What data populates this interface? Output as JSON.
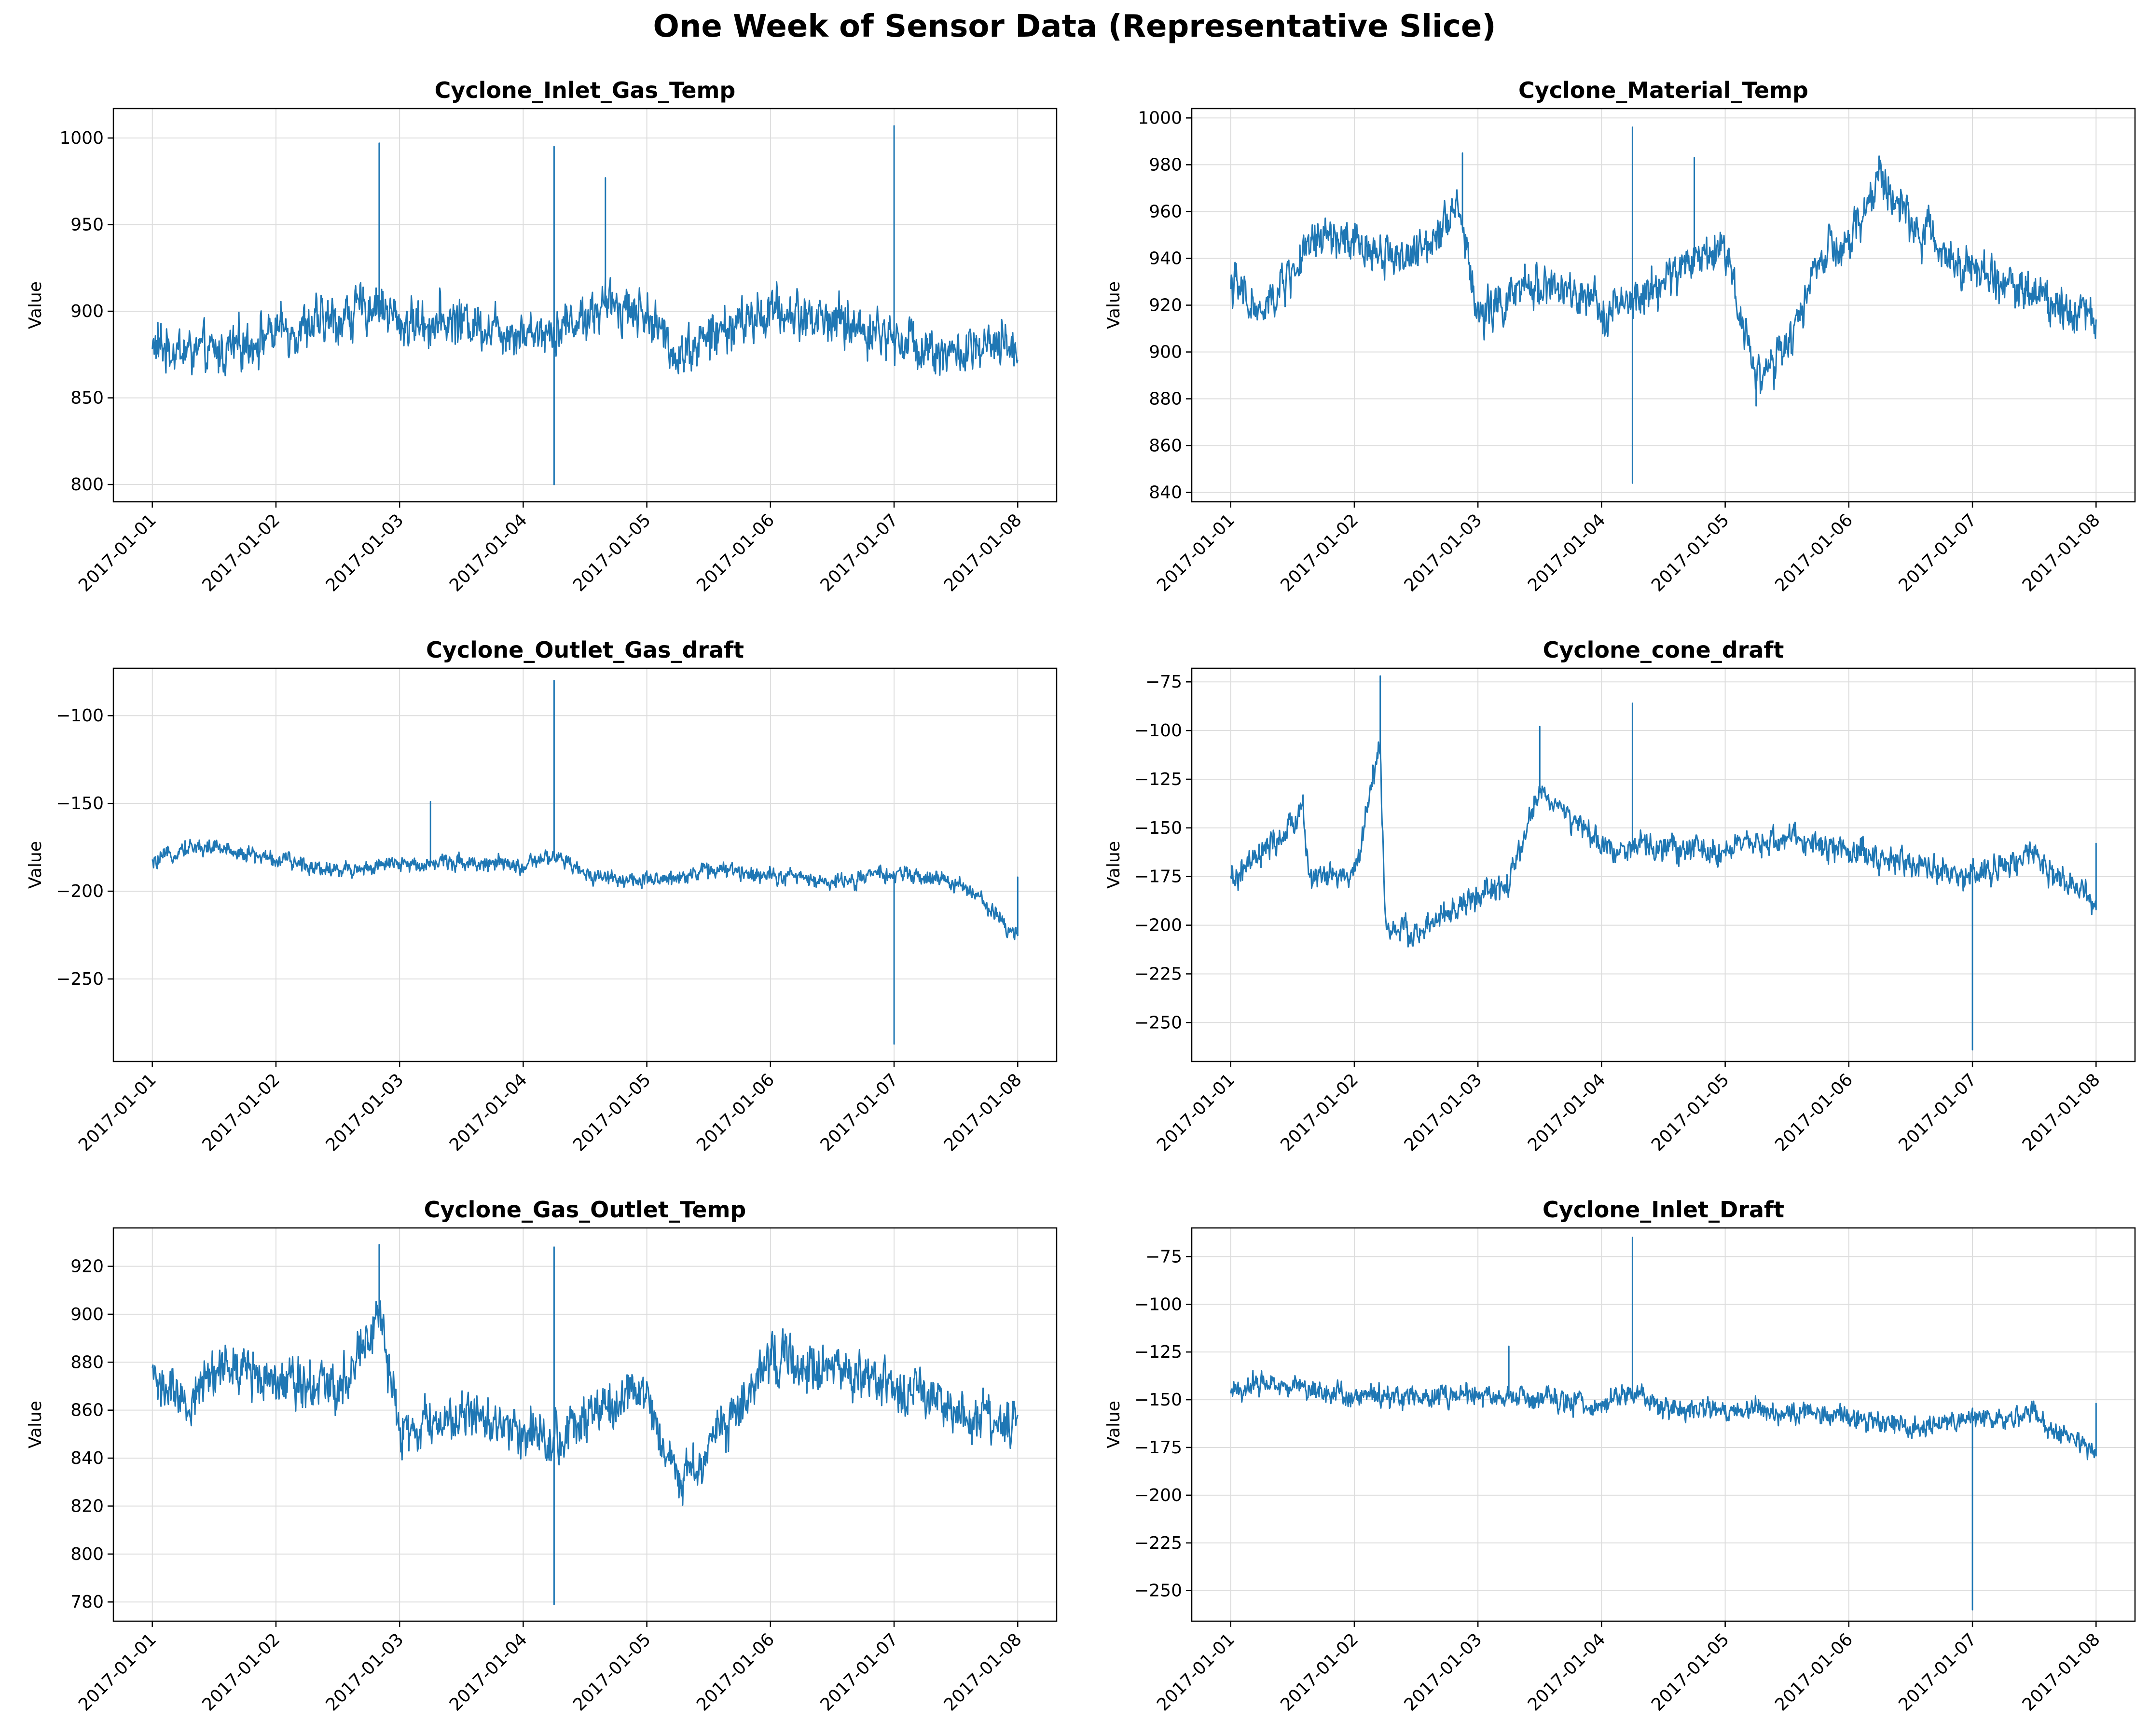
{
  "figure": {
    "title": "One Week of Sensor Data (Representative Slice)"
  },
  "colors": {
    "series": "#1f77b4",
    "grid": "#dddddd",
    "axis": "#000000"
  },
  "chart_data": [
    {
      "type": "line",
      "title": "Cyclone_Inlet_Gas_Temp",
      "xlabel": "",
      "ylabel": "Value",
      "xticks": [
        "2017-01-01",
        "2017-01-02",
        "2017-01-03",
        "2017-01-04",
        "2017-01-05",
        "2017-01-06",
        "2017-01-07",
        "2017-01-08"
      ],
      "yticks": [
        800,
        850,
        900,
        950,
        1000
      ],
      "ylim": [
        790,
        1017
      ],
      "grid": true,
      "x": [
        "2017-01-01",
        "2017-01-01 12:00",
        "2017-01-02",
        "2017-01-02 12:00",
        "2017-01-02 20:00",
        "2017-01-03",
        "2017-01-03 12:00",
        "2017-01-04",
        "2017-01-04 06:00",
        "2017-01-04 18:00",
        "2017-01-05",
        "2017-01-05 06:00",
        "2017-01-05 12:00",
        "2017-01-06",
        "2017-01-06 12:00",
        "2017-01-07",
        "2017-01-07 12:00",
        "2017-01-08"
      ],
      "values": [
        880,
        875,
        888,
        895,
        905,
        893,
        895,
        888,
        890,
        905,
        898,
        875,
        885,
        900,
        895,
        885,
        875,
        880
      ],
      "noise": 12,
      "spikes": [
        [
          "2017-01-02 20:00",
          997
        ],
        [
          "2017-01-04 06:00",
          800
        ],
        [
          "2017-01-04 06:00",
          995
        ],
        [
          "2017-01-04 16:00",
          977
        ],
        [
          "2017-01-07",
          1007
        ]
      ]
    },
    {
      "type": "line",
      "title": "Cyclone_Material_Temp",
      "xlabel": "",
      "ylabel": "Value",
      "xticks": [
        "2017-01-01",
        "2017-01-02",
        "2017-01-03",
        "2017-01-04",
        "2017-01-05",
        "2017-01-06",
        "2017-01-07",
        "2017-01-08"
      ],
      "yticks": [
        840,
        860,
        880,
        900,
        920,
        940,
        960,
        980,
        1000
      ],
      "ylim": [
        836,
        1004
      ],
      "grid": true,
      "x": [
        "2017-01-01",
        "2017-01-01 06:00",
        "2017-01-01 12:00",
        "2017-01-01 18:00",
        "2017-01-02",
        "2017-01-02 12:00",
        "2017-01-02 20:00",
        "2017-01-03",
        "2017-01-03 12:00",
        "2017-01-04",
        "2017-01-04 06:00",
        "2017-01-04 18:00",
        "2017-01-05",
        "2017-01-05 06:00",
        "2017-01-05 12:00",
        "2017-01-05 18:00",
        "2017-01-06",
        "2017-01-06 06:00",
        "2017-01-06 12:00",
        "2017-01-07",
        "2017-01-07 12:00",
        "2017-01-08"
      ],
      "values": [
        930,
        915,
        935,
        950,
        945,
        940,
        965,
        915,
        930,
        918,
        920,
        940,
        945,
        890,
        900,
        940,
        945,
        975,
        955,
        935,
        925,
        915
      ],
      "noise": 8,
      "spikes": [
        [
          "2017-01-02 21:00",
          985
        ],
        [
          "2017-01-04 06:00",
          844
        ],
        [
          "2017-01-04 06:00",
          996
        ],
        [
          "2017-01-04 18:00",
          983
        ],
        [
          "2017-01-05 06:00",
          877
        ]
      ]
    },
    {
      "type": "line",
      "title": "Cyclone_Outlet_Gas_draft",
      "xlabel": "",
      "ylabel": "Value",
      "xticks": [
        "2017-01-01",
        "2017-01-02",
        "2017-01-03",
        "2017-01-04",
        "2017-01-05",
        "2017-01-06",
        "2017-01-07",
        "2017-01-08"
      ],
      "yticks": [
        -250,
        -200,
        -150,
        -100
      ],
      "ylim": [
        -297,
        -73
      ],
      "grid": true,
      "x": [
        "2017-01-01",
        "2017-01-01 06:00",
        "2017-01-01 12:00",
        "2017-01-02",
        "2017-01-02 12:00",
        "2017-01-03",
        "2017-01-03 12:00",
        "2017-01-04",
        "2017-01-04 06:00",
        "2017-01-04 12:00",
        "2017-01-05",
        "2017-01-05 12:00",
        "2017-01-06",
        "2017-01-06 12:00",
        "2017-01-07",
        "2017-01-07 12:00",
        "2017-01-07 18:00",
        "2017-01-08"
      ],
      "values": [
        -185,
        -175,
        -175,
        -182,
        -188,
        -185,
        -183,
        -186,
        -180,
        -190,
        -195,
        -188,
        -190,
        -195,
        -190,
        -195,
        -208,
        -225
      ],
      "noise": 4,
      "spikes": [
        [
          "2017-01-03 06:00",
          -149
        ],
        [
          "2017-01-04 06:00",
          -80
        ],
        [
          "2017-01-07",
          -287
        ],
        [
          "2017-01-08",
          -192
        ]
      ]
    },
    {
      "type": "line",
      "title": "Cyclone_cone_draft",
      "xlabel": "",
      "ylabel": "Value",
      "xticks": [
        "2017-01-01",
        "2017-01-02",
        "2017-01-03",
        "2017-01-04",
        "2017-01-05",
        "2017-01-06",
        "2017-01-07",
        "2017-01-08"
      ],
      "yticks": [
        -250,
        -225,
        -200,
        -175,
        -150,
        -125,
        -100,
        -75
      ],
      "ylim": [
        -270,
        -68
      ],
      "grid": true,
      "x": [
        "2017-01-01",
        "2017-01-01 12:00",
        "2017-01-01 14:00",
        "2017-01-01 15:00",
        "2017-01-02",
        "2017-01-02 05:00",
        "2017-01-02 06:00",
        "2017-01-02 12:00",
        "2017-01-03",
        "2017-01-03 06:00",
        "2017-01-03 12:00",
        "2017-01-04",
        "2017-01-04 12:00",
        "2017-01-05",
        "2017-01-05 12:00",
        "2017-01-06",
        "2017-01-06 12:00",
        "2017-01-07",
        "2017-01-07 12:00",
        "2017-01-08"
      ],
      "values": [
        -178,
        -150,
        -135,
        -175,
        -175,
        -105,
        -200,
        -205,
        -185,
        -180,
        -130,
        -160,
        -160,
        -162,
        -155,
        -162,
        -168,
        -175,
        -165,
        -190
      ],
      "noise": 6,
      "spikes": [
        [
          "2017-01-02 05:00",
          -72
        ],
        [
          "2017-01-03 12:00",
          -98
        ],
        [
          "2017-01-04 06:00",
          -86
        ],
        [
          "2017-01-07",
          -264
        ],
        [
          "2017-01-08",
          -158
        ]
      ]
    },
    {
      "type": "line",
      "title": "Cyclone_Gas_Outlet_Temp",
      "xlabel": "",
      "ylabel": "Value",
      "xticks": [
        "2017-01-01",
        "2017-01-02",
        "2017-01-03",
        "2017-01-04",
        "2017-01-05",
        "2017-01-06",
        "2017-01-07",
        "2017-01-08"
      ],
      "yticks": [
        780,
        800,
        820,
        840,
        860,
        880,
        900,
        920
      ],
      "ylim": [
        772,
        936
      ],
      "grid": true,
      "x": [
        "2017-01-01",
        "2017-01-01 06:00",
        "2017-01-01 12:00",
        "2017-01-02",
        "2017-01-02 12:00",
        "2017-01-02 20:00",
        "2017-01-03",
        "2017-01-03 12:00",
        "2017-01-04",
        "2017-01-04 06:00",
        "2017-01-04 18:00",
        "2017-01-05",
        "2017-01-05 06:00",
        "2017-01-05 12:00",
        "2017-01-06",
        "2017-01-06 12:00",
        "2017-01-07",
        "2017-01-07 12:00",
        "2017-01-08"
      ],
      "values": [
        875,
        860,
        878,
        875,
        870,
        900,
        850,
        858,
        852,
        848,
        862,
        868,
        828,
        845,
        880,
        878,
        870,
        858,
        855
      ],
      "noise": 9,
      "spikes": [
        [
          "2017-01-02 20:00",
          929
        ],
        [
          "2017-01-04 06:00",
          779
        ],
        [
          "2017-01-04 06:00",
          928
        ]
      ]
    },
    {
      "type": "line",
      "title": "Cyclone_Inlet_Draft",
      "xlabel": "",
      "ylabel": "Value",
      "xticks": [
        "2017-01-01",
        "2017-01-02",
        "2017-01-03",
        "2017-01-04",
        "2017-01-05",
        "2017-01-06",
        "2017-01-07",
        "2017-01-08"
      ],
      "yticks": [
        -250,
        -225,
        -200,
        -175,
        -150,
        -125,
        -100,
        -75
      ],
      "ylim": [
        -266,
        -60
      ],
      "grid": true,
      "x": [
        "2017-01-01",
        "2017-01-01 06:00",
        "2017-01-02",
        "2017-01-03",
        "2017-01-04",
        "2017-01-04 06:00",
        "2017-01-04 12:00",
        "2017-01-05",
        "2017-01-06",
        "2017-01-06 12:00",
        "2017-01-07",
        "2017-01-07 12:00",
        "2017-01-07 18:00",
        "2017-01-08"
      ],
      "values": [
        -147,
        -140,
        -148,
        -148,
        -153,
        -145,
        -155,
        -155,
        -158,
        -165,
        -160,
        -158,
        -168,
        -178
      ],
      "noise": 5,
      "spikes": [
        [
          "2017-01-03 06:00",
          -122
        ],
        [
          "2017-01-04 06:00",
          -65
        ],
        [
          "2017-01-07",
          -260
        ],
        [
          "2017-01-08",
          -152
        ]
      ]
    }
  ]
}
